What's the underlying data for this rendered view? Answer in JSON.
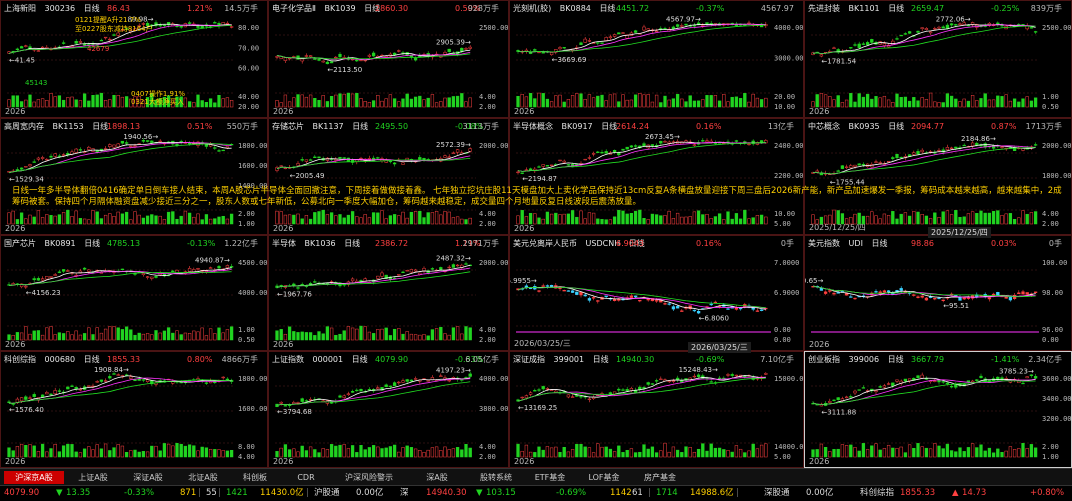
{
  "panels": [
    {
      "name": "上海新阳",
      "code": "300236",
      "period": "日线",
      "price": "86.43",
      "change": "1.21%",
      "vol": "14.5万手",
      "dir": "up",
      "date": "2026",
      "yaxis": [
        "80.00",
        "70.00",
        "60.00",
        "40.00",
        "20.00"
      ],
      "hi": "89.98",
      "lo": "41.45",
      "hi2": "45143"
    },
    {
      "name": "电子化学品Ⅱ",
      "code": "BK1039",
      "period": "日线",
      "price": "2860.30",
      "change": "0.50%",
      "vol": "928万手",
      "dir": "up",
      "date": "2026",
      "yaxis": [
        "2500.00",
        "4.00",
        "2.00"
      ],
      "hi": "2905.39",
      "lo": "2113.50"
    },
    {
      "name": "光刻机(胶)",
      "code": "BK0884",
      "period": "日线",
      "price": "4451.72",
      "change": "-0.37%",
      "vol": "4567.97",
      "dir": "dn",
      "date": "2026",
      "yaxis": [
        "4000.00",
        "3000.00",
        "20.00",
        "10.00"
      ],
      "hi": "4567.97",
      "lo": "3669.69"
    },
    {
      "name": "先进封装",
      "code": "BK1101",
      "period": "日线",
      "price": "2659.47",
      "change": "-0.25%",
      "vol": "839万手",
      "dir": "dn",
      "date": "2026",
      "yaxis": [
        "2500.00",
        "1.00",
        "0.50"
      ],
      "hi": "2772.06",
      "lo": "1781.54"
    },
    {
      "name": "高周宽内存",
      "code": "BK1153",
      "period": "日线",
      "price": "1898.13",
      "change": "0.51%",
      "vol": "550万手",
      "dir": "up",
      "date": "2026",
      "yaxis": [
        "1800.00",
        "1600.00",
        "1400.00",
        "2.00",
        "1.00"
      ],
      "hi": "1940.56",
      "lo": "1529.34"
    },
    {
      "name": "存储芯片",
      "code": "BK1137",
      "period": "日线",
      "price": "2495.50",
      "change": "-0.08%",
      "vol": "3113万手",
      "dir": "dn",
      "date": "2026",
      "yaxis": [
        "2000.00",
        "4.00",
        "2.00"
      ],
      "hi": "2572.39",
      "lo": "2005.49"
    },
    {
      "name": "半导体概念",
      "code": "BK0917",
      "period": "日线",
      "price": "2614.24",
      "change": "0.16%",
      "vol": "13亿手",
      "dir": "up",
      "date": "2026",
      "yaxis": [
        "2400.00",
        "2200.00",
        "10.00",
        "5.00"
      ],
      "hi": "2673.45",
      "lo": "2194.87"
    },
    {
      "name": "中芯概念",
      "code": "BK0935",
      "period": "日线",
      "price": "2094.77",
      "change": "0.87%",
      "vol": "1713万手",
      "dir": "up",
      "date": "2025/12/25/四",
      "yaxis": [
        "2000.00",
        "1800.00",
        "4.00",
        "2.00"
      ],
      "hi": "2184.86",
      "lo": "1755.44"
    },
    {
      "name": "国产芯片",
      "code": "BK0891",
      "period": "日线",
      "price": "4785.13",
      "change": "-0.13%",
      "vol": "1.22亿手",
      "dir": "dn",
      "date": "2026",
      "yaxis": [
        "4500.00",
        "4000.00",
        "1.00",
        "0.50"
      ],
      "hi": "4940.87",
      "lo": "4156.23"
    },
    {
      "name": "半导体",
      "code": "BK1036",
      "period": "日线",
      "price": "2386.72",
      "change": "1.11%",
      "vol": "2971万手",
      "dir": "up",
      "date": "2026",
      "yaxis": [
        "2000.00",
        "4.00",
        "2.00"
      ],
      "hi": "2487.32",
      "lo": "1967.76"
    },
    {
      "name": "美元兑离岸人民币",
      "code": "USDCNH",
      "period": "日线",
      "price": "6.9043",
      "change": "0.16%",
      "vol": "0手",
      "dir": "up",
      "date": "2026/03/25/三",
      "yaxis": [
        "7.0000",
        "6.9000",
        "0.00",
        "0.00"
      ],
      "hi": "6.9955",
      "lo": "6.8060"
    },
    {
      "name": "美元指数",
      "code": "UDI",
      "period": "日线",
      "price": "98.86",
      "change": "0.03%",
      "vol": "0手",
      "dir": "up",
      "date": "2026",
      "yaxis": [
        "100.00",
        "98.00",
        "96.00",
        "0.00"
      ],
      "hi": "100.65",
      "lo": "95.51"
    },
    {
      "name": "科创综指",
      "code": "000680",
      "period": "日线",
      "price": "1855.33",
      "change": "0.80%",
      "vol": "4866万手",
      "dir": "up",
      "date": "2026",
      "yaxis": [
        "1800.00",
        "1600.00",
        "8.00",
        "4.00"
      ],
      "hi": "1908.84",
      "lo": "1576.40"
    },
    {
      "name": "上证指数",
      "code": "000001",
      "period": "日线",
      "price": "4079.90",
      "change": "-0.33%",
      "vol": "6.05亿手",
      "dir": "dn",
      "date": "2026",
      "yaxis": [
        "4000.00",
        "3800.00",
        "4.00",
        "2.00"
      ],
      "hi": "4197.23",
      "lo": "3794.68"
    },
    {
      "name": "深证成指",
      "code": "399001",
      "period": "日线",
      "price": "14940.30",
      "change": "-0.69%",
      "vol": "7.10亿手",
      "dir": "dn",
      "date": "2026",
      "yaxis": [
        "15000.00",
        "14000.00",
        "5.00"
      ],
      "hi": "15248.43",
      "lo": "13169.25"
    },
    {
      "name": "创业板指",
      "code": "399006",
      "period": "日线",
      "price": "3667.79",
      "change": "-1.41%",
      "vol": "2.34亿手",
      "dir": "dn",
      "date": "2026",
      "yaxis": [
        "3600.00",
        "3400.00",
        "3200.00",
        "2.00",
        "1.00"
      ],
      "hi": "3785.23",
      "lo": "3111.88"
    }
  ],
  "annotations": {
    "p1_a": "0121提醒A升21.7%",
    "p1_b": "至0227股东减持8164户",
    "p1_c": "0407操作1.91%",
    "p1_d": "0321大额净买入",
    "p1_e": "42679"
  },
  "news": "日线一年多半导体翻倍0416确定单日倒车接人结束，本周A股芯片半导体全面回撤注意，下周接着做做接着鑫。 七年独立挖坑庄股11天模盘加大上卖化学品保持近13cm反复A条横盘放量迎接下周三盘后2026新产能，新产品加速爆发一季报，筹码成本越来越高，越来越集中，2成筹码被套。保持四个月隔体融资盘减少接近三分之一，股东人数或七年新低，公募北向一季度大幅加仓，筹码越来越稳定，成交量四个月地量反复日线波段后震荡放量。",
  "dates": {
    "panel8": "2025/12/25/四",
    "panel11": "2026/03/25/三"
  },
  "tabs": [
    "沪深京A股",
    "上证A股",
    "深证A股",
    "北证A股",
    "科创板",
    "CDR",
    "沪深风险警示",
    "深A股",
    "股转系统",
    "ETF基金",
    "LOF基金",
    "房产基金"
  ],
  "ticker": {
    "sh_val": "4079.90",
    "sh_chg": "13.35",
    "sh_pct": "-0.33%",
    "sh_vol": "871",
    "sh_up": "55",
    "sh_dn": "1421",
    "sh_amt": "11430.0亿",
    "t1": "沪股通",
    "t1v": "0.00亿",
    "sz": "深",
    "sz_val": "14940.30",
    "sz_chg": "103.15",
    "sz_pct": "-0.69%",
    "sz_vol": "1142",
    "sz_up": "61",
    "sz_dn": "1714",
    "sz_amt": "14988.6亿",
    "t2": "深股通",
    "t2v": "0.00亿",
    "kc": "科创综指",
    "kc_val": "1855.33",
    "kc_chg": "14.73",
    "kc_pct": "+0.80%"
  },
  "colors": {
    "up": "#ff4040",
    "down": "#21d321",
    "ma1": "#ffffff",
    "ma2": "#ffd000",
    "ma3": "#ff33ff",
    "ma4": "#22dd22",
    "border": "#4a1414"
  }
}
